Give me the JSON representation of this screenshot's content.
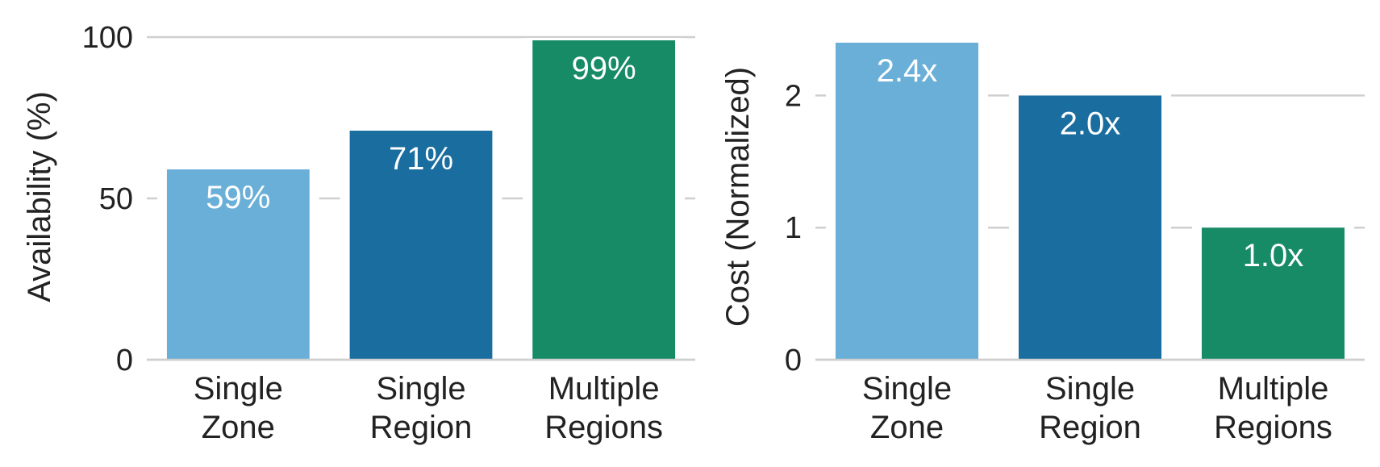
{
  "chart_data": [
    {
      "type": "bar",
      "title": "",
      "xlabel": "",
      "ylabel": "Availability (%)",
      "categories": [
        [
          "Single",
          "Zone"
        ],
        [
          "Single",
          "Region"
        ],
        [
          "Multiple",
          "Regions"
        ]
      ],
      "values": [
        59,
        71,
        99
      ],
      "data_labels": [
        "59%",
        "71%",
        "99%"
      ],
      "colors": [
        "#6aafd7",
        "#1a6d9f",
        "#178a66"
      ],
      "yticks": [
        0,
        50,
        100
      ],
      "ytick_labels": [
        "0",
        "50",
        "100"
      ],
      "ylim": [
        0,
        100
      ],
      "grid": true
    },
    {
      "type": "bar",
      "title": "",
      "xlabel": "",
      "ylabel": "Cost (Normalized)",
      "categories": [
        [
          "Single",
          "Zone"
        ],
        [
          "Single",
          "Region"
        ],
        [
          "Multiple",
          "Regions"
        ]
      ],
      "values": [
        2.4,
        2.0,
        1.0
      ],
      "data_labels": [
        "2.4x",
        "2.0x",
        "1.0x"
      ],
      "colors": [
        "#6aafd7",
        "#1a6d9f",
        "#178a66"
      ],
      "yticks": [
        0,
        1,
        2
      ],
      "ytick_labels": [
        "0",
        "1",
        "2"
      ],
      "ylim": [
        0,
        2.43
      ],
      "grid": true
    }
  ]
}
